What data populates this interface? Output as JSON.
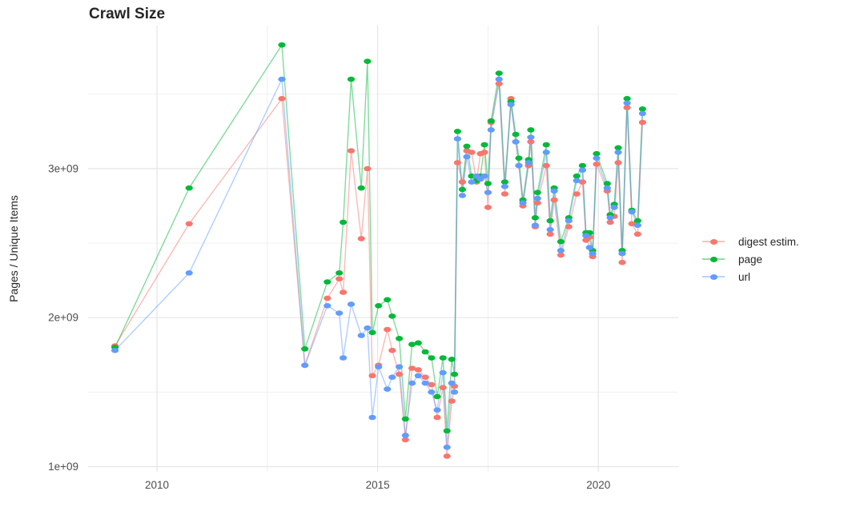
{
  "chart_data": {
    "type": "line",
    "title": "Crawl Size",
    "xlabel": "",
    "ylabel": "Pages / Unique Items",
    "value_unit": "1e9 (billions); y tick labels shown in scientific notation",
    "grid": true,
    "legend_position": "right",
    "xlim": [
      2008.44,
      2021.81
    ],
    "ylim": [
      0.965,
      3.96
    ],
    "x_ticks": {
      "major": [
        2010,
        2015,
        2020
      ],
      "minor": [
        2012.5,
        2017.5
      ],
      "labels": [
        "2010",
        "2015",
        "2020"
      ]
    },
    "y_ticks": {
      "major": [
        1,
        2,
        3
      ],
      "minor": [
        1.5,
        2.5,
        3.5
      ],
      "labels": [
        "1e+09",
        "2e+09",
        "3e+09"
      ]
    },
    "x": [
      2009.05,
      2010.73,
      2012.83,
      2013.35,
      2013.86,
      2014.13,
      2014.22,
      2014.4,
      2014.63,
      2014.77,
      2014.88,
      2015.02,
      2015.22,
      2015.33,
      2015.49,
      2015.63,
      2015.78,
      2015.92,
      2016.08,
      2016.22,
      2016.35,
      2016.48,
      2016.57,
      2016.68,
      2016.74,
      2016.81,
      2016.92,
      2017.02,
      2017.13,
      2017.24,
      2017.33,
      2017.42,
      2017.5,
      2017.57,
      2017.75,
      2017.88,
      2018.02,
      2018.13,
      2018.2,
      2018.29,
      2018.42,
      2018.47,
      2018.57,
      2018.62,
      2018.82,
      2018.91,
      2019.0,
      2019.15,
      2019.33,
      2019.51,
      2019.64,
      2019.72,
      2019.8,
      2019.87,
      2019.96,
      2020.2,
      2020.27,
      2020.36,
      2020.45,
      2020.54,
      2020.65,
      2020.76,
      2020.89,
      2021.0
    ],
    "series": [
      {
        "name": "digest estim.",
        "color": "#F8766D",
        "values": [
          1.81,
          2.63,
          3.47,
          1.68,
          2.13,
          2.26,
          2.17,
          3.12,
          2.53,
          3.0,
          1.61,
          1.68,
          1.92,
          1.78,
          1.62,
          1.18,
          1.66,
          1.65,
          1.6,
          1.55,
          1.33,
          1.53,
          1.07,
          1.44,
          1.54,
          3.04,
          2.91,
          3.12,
          3.11,
          2.91,
          3.1,
          3.11,
          2.74,
          3.31,
          3.57,
          2.83,
          3.47,
          3.18,
          3.02,
          2.75,
          3.02,
          3.18,
          2.61,
          2.77,
          3.02,
          2.56,
          2.79,
          2.42,
          2.61,
          2.83,
          2.91,
          2.52,
          2.54,
          2.41,
          3.03,
          2.85,
          2.64,
          2.68,
          3.04,
          2.37,
          3.41,
          2.63,
          2.56,
          3.31
        ]
      },
      {
        "name": "page",
        "color": "#00BA38",
        "values": [
          1.8,
          2.87,
          3.83,
          1.79,
          2.24,
          2.3,
          2.64,
          3.6,
          2.87,
          3.72,
          1.9,
          2.08,
          2.12,
          2.01,
          1.86,
          1.32,
          1.82,
          1.83,
          1.77,
          1.73,
          1.47,
          1.73,
          1.24,
          1.72,
          1.62,
          3.25,
          2.86,
          3.15,
          2.95,
          2.92,
          2.95,
          3.16,
          2.9,
          3.32,
          3.64,
          2.91,
          3.45,
          3.23,
          3.07,
          2.79,
          3.06,
          3.26,
          2.67,
          2.84,
          3.16,
          2.65,
          2.87,
          2.51,
          2.67,
          2.95,
          3.02,
          2.57,
          2.57,
          2.45,
          3.1,
          2.9,
          2.69,
          2.76,
          3.14,
          2.45,
          3.47,
          2.72,
          2.65,
          3.4
        ]
      },
      {
        "name": "url",
        "color": "#619CFF",
        "values": [
          1.78,
          2.3,
          3.6,
          1.68,
          2.08,
          2.03,
          1.73,
          2.09,
          1.88,
          1.93,
          1.33,
          1.67,
          1.52,
          1.6,
          1.67,
          1.21,
          1.56,
          1.61,
          1.56,
          1.5,
          1.38,
          1.63,
          1.13,
          1.56,
          1.5,
          3.2,
          2.82,
          3.08,
          2.91,
          2.95,
          2.93,
          2.95,
          2.84,
          3.26,
          3.6,
          2.88,
          3.43,
          3.18,
          3.02,
          2.77,
          3.04,
          3.21,
          2.62,
          2.8,
          3.11,
          2.59,
          2.85,
          2.45,
          2.65,
          2.92,
          2.99,
          2.55,
          2.47,
          2.43,
          3.07,
          2.87,
          2.67,
          2.74,
          3.11,
          2.43,
          3.44,
          2.71,
          2.62,
          3.37
        ]
      }
    ]
  }
}
